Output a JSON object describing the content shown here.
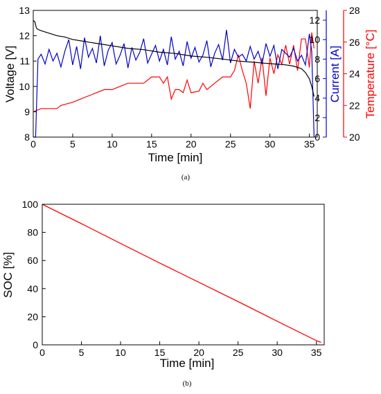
{
  "chart_data": [
    {
      "type": "line",
      "caption": "(a)",
      "xlabel": "Time [min]",
      "xlim": [
        0,
        36
      ],
      "xticks": [
        0,
        5,
        10,
        15,
        20,
        25,
        30,
        35
      ],
      "axes": {
        "voltage": {
          "label": "Voltage [V]",
          "lim": [
            8,
            13
          ],
          "ticks": [
            8,
            9,
            10,
            11,
            12,
            13
          ],
          "color": "#000000"
        },
        "current": {
          "label": "Current [A]",
          "lim": [
            0,
            13
          ],
          "ticks": [
            0,
            2,
            4,
            6,
            8,
            10,
            12
          ],
          "color": "#0000cc"
        },
        "temperature": {
          "label": "Temperature [°C]",
          "lim": [
            20,
            28
          ],
          "ticks": [
            20,
            22,
            24,
            26,
            28
          ],
          "color": "#ff0000"
        }
      },
      "series": [
        {
          "axis": "voltage",
          "color": "#000000",
          "x": [
            0,
            0.2,
            0.4,
            0.6,
            1,
            2,
            3,
            4,
            5,
            6,
            7,
            8,
            9,
            10,
            12,
            14,
            16,
            18,
            20,
            22,
            24,
            26,
            28,
            30,
            32,
            33,
            33.5,
            34,
            34.5,
            35,
            35.3,
            35.6
          ],
          "y": [
            12.6,
            12.55,
            12.3,
            12.25,
            12.2,
            12.1,
            12.0,
            11.95,
            11.85,
            11.8,
            11.75,
            11.7,
            11.65,
            11.6,
            11.5,
            11.45,
            11.35,
            11.3,
            11.2,
            11.15,
            11.08,
            11.0,
            10.95,
            10.9,
            10.85,
            10.8,
            10.75,
            10.7,
            10.55,
            10.3,
            10.0,
            9.6
          ]
        },
        {
          "axis": "current",
          "color": "#0000cc",
          "x": [
            0,
            0.3,
            0.6,
            1,
            1.5,
            2,
            2.5,
            3,
            3.5,
            4,
            4.5,
            5,
            5.5,
            6,
            6.5,
            7,
            7.5,
            8,
            8.5,
            9,
            9.5,
            10,
            10.5,
            11,
            11.5,
            12,
            12.5,
            13,
            13.5,
            14,
            14.5,
            15,
            15.5,
            16,
            16.5,
            17,
            17.5,
            18,
            18.5,
            19,
            19.5,
            20,
            20.5,
            21,
            21.5,
            22,
            22.5,
            23,
            23.5,
            24,
            24.5,
            25,
            25.5,
            26,
            26.5,
            27,
            27.5,
            28,
            28.5,
            29,
            29.5,
            30,
            30.5,
            31,
            31.5,
            32,
            32.5,
            33,
            33.5,
            34,
            34.5,
            35,
            35.3,
            35.6
          ],
          "y": [
            0,
            0,
            8,
            8.5,
            7.5,
            9,
            7.8,
            8.6,
            7.2,
            8.8,
            10,
            7.4,
            9.3,
            7.0,
            10.2,
            8.2,
            9.1,
            7.6,
            10.4,
            7.3,
            8.9,
            9.7,
            7.5,
            8.4,
            9.6,
            7.1,
            9.2,
            7.9,
            8.7,
            10.1,
            7.6,
            8.5,
            9.4,
            7.8,
            9.0,
            7.4,
            10.3,
            8.0,
            8.8,
            7.3,
            9.8,
            8.1,
            9.2,
            7.7,
            8.4,
            9.9,
            7.2,
            8.6,
            9.5,
            7.9,
            11.0,
            7.6,
            9.0,
            8.2,
            8.5,
            7.8,
            9.3,
            8.0,
            8.8,
            7.5,
            9.6,
            8.3,
            9.4,
            7.0,
            9.0,
            8.6,
            8.2,
            9.1,
            7.8,
            8.4,
            7.4,
            10.6,
            8.8,
            0
          ]
        },
        {
          "axis": "temperature",
          "color": "#ff0000",
          "x": [
            0,
            1,
            2,
            3,
            3.5,
            5,
            6,
            7,
            8,
            9,
            10,
            11,
            12,
            13,
            14,
            15,
            16,
            16.5,
            17,
            17.5,
            18,
            18.5,
            19,
            19.5,
            20,
            21,
            21.5,
            22,
            23,
            24,
            25,
            25.5,
            26,
            26.5,
            27,
            27.5,
            28,
            28.5,
            29,
            29.5,
            30,
            30.5,
            31,
            31.5,
            32,
            32.5,
            33,
            33.5,
            34,
            34.5,
            35,
            35.3,
            35.6
          ],
          "y": [
            21.6,
            21.8,
            21.8,
            21.8,
            22.0,
            22.2,
            22.4,
            22.6,
            22.8,
            23.0,
            23.0,
            23.2,
            23.4,
            23.4,
            23.4,
            23.8,
            23.8,
            23.4,
            23.8,
            22.4,
            23.0,
            23.0,
            22.8,
            23.6,
            22.8,
            22.9,
            23.4,
            23.0,
            23.4,
            23.8,
            23.8,
            24.2,
            25.2,
            24.2,
            23.4,
            21.8,
            24.8,
            23.4,
            25.0,
            22.6,
            25.0,
            24.0,
            25.2,
            24.6,
            25.8,
            24.6,
            25.8,
            24.2,
            26.2,
            26.2,
            24.4,
            26.6,
            25.6
          ]
        }
      ]
    },
    {
      "type": "line",
      "caption": "(b)",
      "xlabel": "Time [min]",
      "ylabel": "SOC [%]",
      "xlim": [
        0,
        36
      ],
      "ylim": [
        0,
        100
      ],
      "xticks": [
        0,
        5,
        10,
        15,
        20,
        25,
        30,
        35
      ],
      "yticks": [
        0,
        20,
        40,
        60,
        80,
        100
      ],
      "series": [
        {
          "color": "#ff0000",
          "x": [
            0,
            5,
            10,
            15,
            20,
            25,
            30,
            35,
            35.6
          ],
          "y": [
            100,
            86.2,
            72.1,
            58.2,
            44.5,
            30.8,
            16.8,
            3.0,
            1.7
          ]
        }
      ]
    }
  ]
}
